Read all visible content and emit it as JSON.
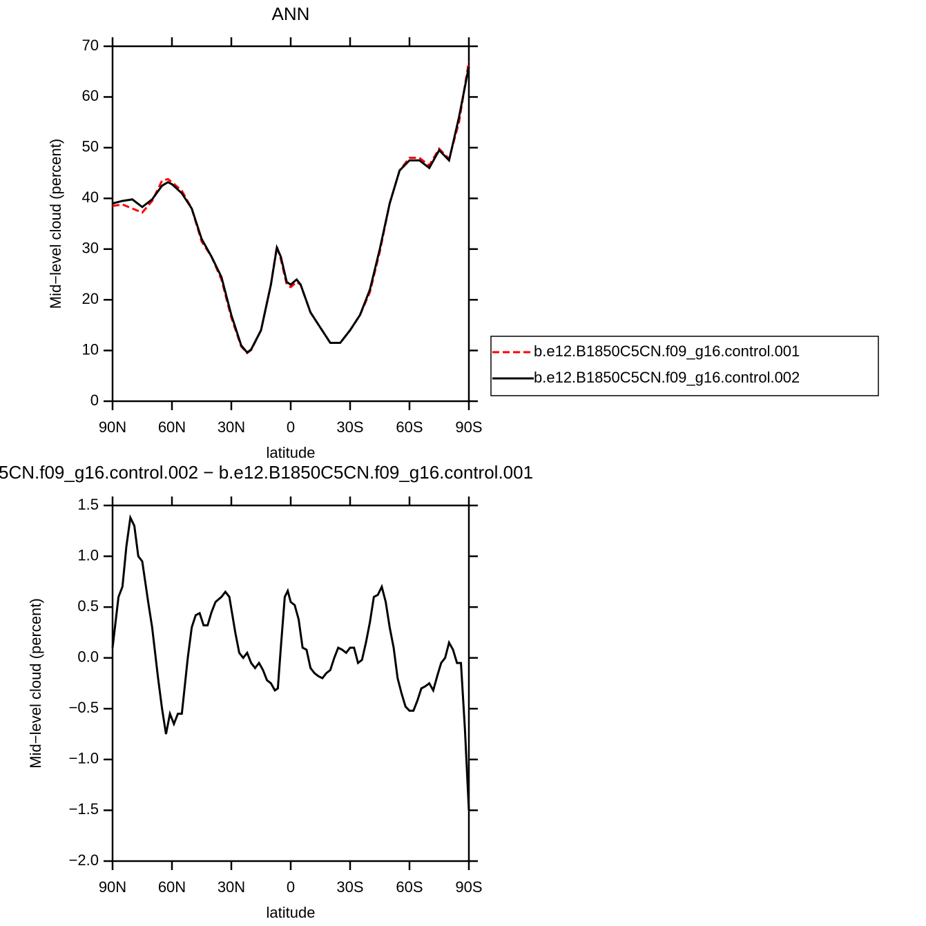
{
  "chart_data": [
    {
      "type": "line",
      "title": "ANN",
      "xlabel": "latitude",
      "ylabel": "Mid−level cloud (percent)",
      "x": [
        90,
        85,
        80,
        75,
        70,
        65,
        62,
        60,
        55,
        50,
        45,
        40,
        35,
        30,
        25,
        22,
        20,
        15,
        10,
        7,
        5,
        2,
        0,
        -3,
        -5,
        -10,
        -15,
        -20,
        -25,
        -30,
        -35,
        -40,
        -45,
        -50,
        -55,
        -60,
        -65,
        -70,
        -75,
        -80,
        -85,
        -90
      ],
      "series": [
        {
          "name": "b.e12.B1850C5CN.f09_g16.control.001",
          "color": "#ff0000",
          "linestyle": "dashed",
          "values": [
            38.5,
            38.8,
            38,
            37.2,
            39.5,
            43.5,
            43.8,
            43.2,
            41.5,
            38,
            31.5,
            28.5,
            24,
            16.5,
            10.8,
            9.5,
            10.1,
            14,
            23,
            30.5,
            28,
            23,
            22.5,
            23.5,
            23,
            17.5,
            14.5,
            11.5,
            11.5,
            14,
            17,
            21.5,
            29.5,
            39,
            45.5,
            48,
            48,
            46.5,
            49.8,
            47.8,
            55,
            67
          ]
        },
        {
          "name": "b.e12.B1850C5CN.f09_g16.control.002",
          "color": "#000000",
          "linestyle": "solid",
          "values": [
            39,
            39.5,
            39.8,
            38.3,
            39.8,
            42.5,
            43.2,
            42.8,
            41,
            38,
            32,
            28.5,
            24.5,
            17,
            11,
            9.6,
            10.2,
            14,
            23,
            30.3,
            28.5,
            23.5,
            23,
            24,
            23,
            17.5,
            14.5,
            11.5,
            11.5,
            14,
            17,
            22,
            30,
            39,
            45.5,
            47.5,
            47.5,
            46,
            49.5,
            47.5,
            56,
            66
          ]
        }
      ],
      "xlim": [
        90,
        -90
      ],
      "xticks": [
        {
          "value": 90,
          "label": "90N"
        },
        {
          "value": 60,
          "label": "60N"
        },
        {
          "value": 30,
          "label": "30N"
        },
        0,
        {
          "value": -30,
          "label": "30S"
        },
        {
          "value": -60,
          "label": "60S"
        },
        {
          "value": -90,
          "label": "90S"
        }
      ],
      "ylim": [
        0,
        70
      ],
      "yticks": [
        0,
        10,
        20,
        30,
        40,
        50,
        60,
        70
      ],
      "legend": "right"
    },
    {
      "type": "line",
      "title": "5CN.f09_g16.control.002 − b.e12.B1850C5CN.f09_g16.control.001",
      "xlabel": "latitude",
      "ylabel": "Mid−level cloud (percent)",
      "x": [
        90,
        87,
        85,
        83,
        81,
        79,
        77,
        75,
        72,
        70,
        67,
        65,
        63,
        61,
        59,
        57,
        55,
        52,
        50,
        48,
        46,
        44,
        42,
        40,
        38,
        35,
        33,
        31,
        28,
        26,
        24,
        22,
        20,
        18,
        16,
        14,
        12,
        10,
        8,
        6.5,
        5,
        3,
        1.5,
        0,
        -2,
        -4,
        -6,
        -8,
        -10,
        -12,
        -14,
        -16,
        -18,
        -20,
        -22,
        -24,
        -26,
        -28,
        -30,
        -32,
        -34,
        -36,
        -38,
        -40,
        -42,
        -44,
        -46,
        -48,
        -50,
        -52,
        -54,
        -56,
        -58,
        -60,
        -62,
        -64,
        -66,
        -68,
        -70,
        -72,
        -74,
        -76,
        -78,
        -80,
        -82,
        -84,
        -86,
        -88,
        -90
      ],
      "series": [
        {
          "color": "#000000",
          "linestyle": "solid",
          "values": [
            0.1,
            0.6,
            0.7,
            1.1,
            1.38,
            1.3,
            1.0,
            0.95,
            0.55,
            0.3,
            -0.2,
            -0.5,
            -0.75,
            -0.55,
            -0.65,
            -0.55,
            -0.55,
            0.0,
            0.3,
            0.42,
            0.44,
            0.32,
            0.32,
            0.45,
            0.55,
            0.6,
            0.65,
            0.6,
            0.25,
            0.05,
            0.0,
            0.05,
            -0.05,
            -0.1,
            -0.05,
            -0.12,
            -0.22,
            -0.25,
            -0.32,
            -0.3,
            0.1,
            0.6,
            0.66,
            0.55,
            0.52,
            0.38,
            0.1,
            0.08,
            -0.1,
            -0.15,
            -0.18,
            -0.2,
            -0.15,
            -0.12,
            0.0,
            0.1,
            0.08,
            0.05,
            0.1,
            0.1,
            -0.05,
            -0.02,
            0.15,
            0.35,
            0.6,
            0.62,
            0.7,
            0.55,
            0.3,
            0.1,
            -0.2,
            -0.35,
            -0.48,
            -0.52,
            -0.52,
            -0.42,
            -0.3,
            -0.28,
            -0.25,
            -0.32,
            -0.18,
            -0.05,
            0.0,
            0.15,
            0.08,
            -0.05,
            -0.05,
            -0.7,
            -1.5
          ]
        }
      ],
      "xlim": [
        90,
        -90
      ],
      "xticks": [
        {
          "value": 90,
          "label": "90N"
        },
        {
          "value": 60,
          "label": "60N"
        },
        {
          "value": 30,
          "label": "30N"
        },
        0,
        {
          "value": -30,
          "label": "30S"
        },
        {
          "value": -60,
          "label": "60S"
        },
        {
          "value": -90,
          "label": "90S"
        }
      ],
      "ylim": [
        -2,
        1.5
      ],
      "yticks": [
        {
          "value": -2,
          "label": "−2.0"
        },
        {
          "value": -1.5,
          "label": "−1.5"
        },
        {
          "value": -1,
          "label": "−1.0"
        },
        {
          "value": -0.5,
          "label": "−0.5"
        },
        {
          "value": 0,
          "label": "0.0"
        },
        0.5,
        {
          "value": 1,
          "label": "1.0"
        },
        1.5
      ]
    }
  ]
}
